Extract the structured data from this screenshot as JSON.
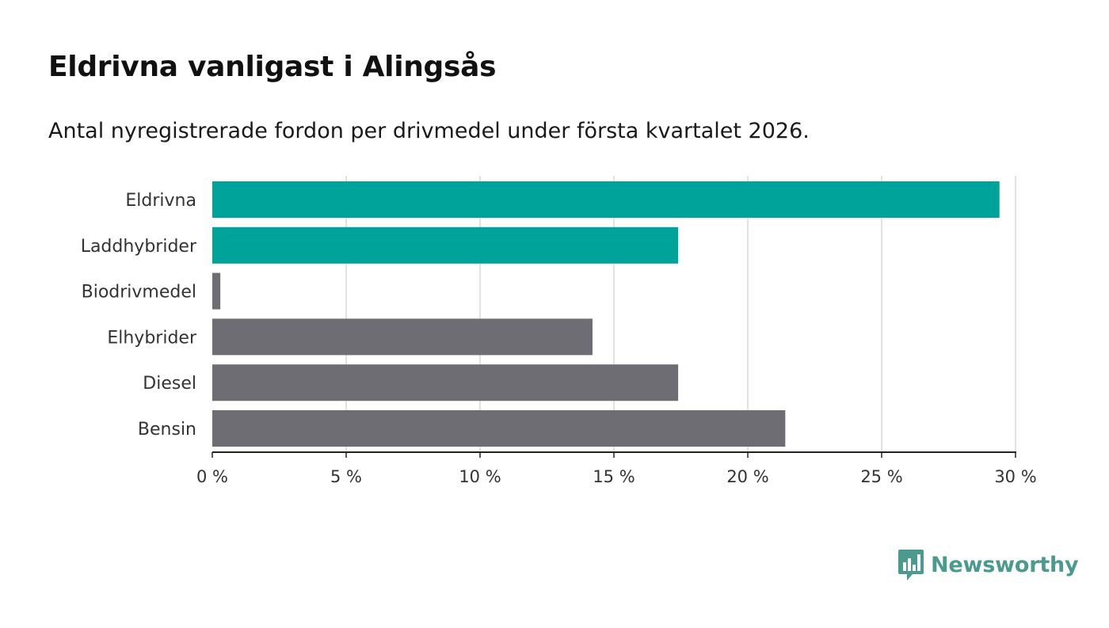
{
  "title": "Eldrivna vanligast i Alingsås",
  "subtitle": "Antal nyregistrerade fordon per drivmedel under första kvartalet 2026.",
  "brand": {
    "name": "Newsworthy",
    "color": "#4a9a8f",
    "icon": "bar-chart-speech-bubble-icon"
  },
  "colors": {
    "highlight": "#00a39a",
    "default": "#6e6d73",
    "grid": "#d9d9d9",
    "axis": "#222222"
  },
  "chart_data": {
    "type": "bar",
    "orientation": "horizontal",
    "categories": [
      "Eldrivna",
      "Laddhybrider",
      "Biodrivmedel",
      "Elhybrider",
      "Diesel",
      "Bensin"
    ],
    "values": [
      29.4,
      17.4,
      0.3,
      14.2,
      17.4,
      21.4
    ],
    "highlighted": [
      true,
      true,
      false,
      false,
      false,
      false
    ],
    "xlim": [
      0,
      30
    ],
    "xticks": [
      0,
      5,
      10,
      15,
      20,
      25,
      30
    ],
    "xtick_labels": [
      "0 %",
      "5 %",
      "10 %",
      "15 %",
      "20 %",
      "25 %",
      "30 %"
    ],
    "unit": "%",
    "grid": true,
    "xlabel": "",
    "ylabel": ""
  }
}
